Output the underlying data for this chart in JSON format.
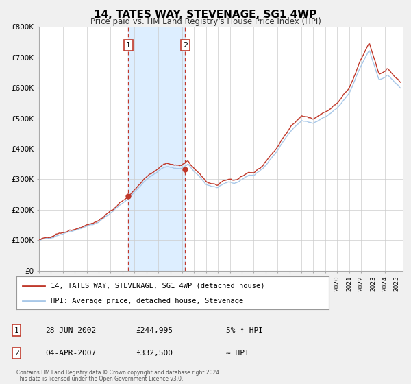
{
  "title": "14, TATES WAY, STEVENAGE, SG1 4WP",
  "subtitle": "Price paid vs. HM Land Registry's House Price Index (HPI)",
  "legend_line1": "14, TATES WAY, STEVENAGE, SG1 4WP (detached house)",
  "legend_line2": "HPI: Average price, detached house, Stevenage",
  "annotation1_label": "1",
  "annotation1_date": "28-JUN-2002",
  "annotation1_price": "£244,995",
  "annotation1_note": "5% ↑ HPI",
  "annotation2_label": "2",
  "annotation2_date": "04-APR-2007",
  "annotation2_price": "£332,500",
  "annotation2_note": "≈ HPI",
  "footer1": "Contains HM Land Registry data © Crown copyright and database right 2024.",
  "footer2": "This data is licensed under the Open Government Licence v3.0.",
  "hpi_color": "#a8c8e8",
  "price_color": "#c0392b",
  "background_color": "#f0f0f0",
  "plot_bg_color": "#ffffff",
  "grid_color": "#cccccc",
  "annotation_box_color": "#c0392b",
  "shade_color": "#ddeeff",
  "ylim": [
    0,
    800000
  ],
  "ytick_values": [
    0,
    100000,
    200000,
    300000,
    400000,
    500000,
    600000,
    700000,
    800000
  ],
  "ytick_labels": [
    "£0",
    "£100K",
    "£200K",
    "£300K",
    "£400K",
    "£500K",
    "£600K",
    "£700K",
    "£800K"
  ],
  "xmin": 1995.0,
  "xmax": 2025.5,
  "transaction1_year": 2002.493,
  "transaction2_year": 2007.256,
  "sale1_price": 244995,
  "sale2_price": 332500
}
